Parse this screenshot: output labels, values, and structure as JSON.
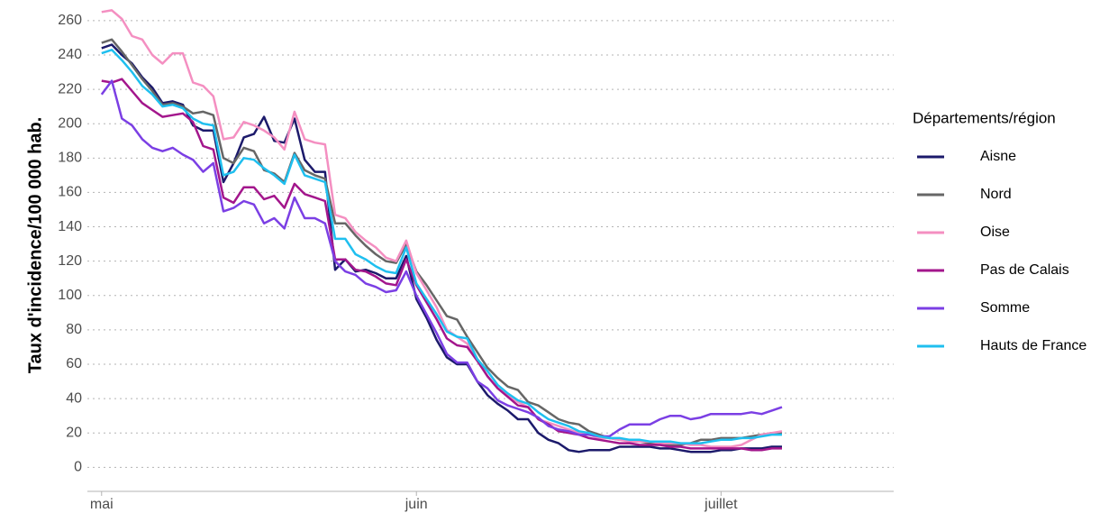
{
  "chart_data": {
    "type": "line",
    "y_label": "Taux d'incidence/100 000 hab.",
    "legend_title": "Départements/région",
    "legend": "right",
    "grid": true,
    "x": [
      0,
      1,
      2,
      3,
      4,
      5,
      6,
      7,
      8,
      9,
      10,
      11,
      12,
      13,
      14,
      15,
      16,
      17,
      18,
      19,
      20,
      21,
      22,
      23,
      24,
      25,
      26,
      27,
      28,
      29,
      30,
      31,
      32,
      33,
      34,
      35,
      36,
      37,
      38,
      39,
      40,
      41,
      42,
      43,
      44,
      45,
      46,
      47,
      48,
      49,
      50,
      51,
      52,
      53,
      54,
      55,
      56,
      57,
      58,
      59,
      60,
      61,
      62,
      63,
      64,
      65,
      66,
      67
    ],
    "xlim": [
      -1.4,
      78
    ],
    "xticks": [
      {
        "value": 0,
        "label": "mai"
      },
      {
        "value": 31,
        "label": "juin"
      },
      {
        "value": 61,
        "label": "juillet"
      }
    ],
    "ylim": [
      -14,
      272
    ],
    "yticks": [
      0,
      20,
      40,
      60,
      80,
      100,
      120,
      140,
      160,
      180,
      200,
      220,
      240,
      260
    ],
    "series": [
      {
        "name": "Aisne",
        "color": "#1c1a6b",
        "values": [
          244,
          246,
          240,
          235,
          227,
          221,
          212,
          213,
          211,
          199,
          196,
          196,
          166,
          177,
          192,
          194,
          204,
          190,
          189,
          203,
          179,
          172,
          172,
          115,
          121,
          114,
          115,
          113,
          110,
          110,
          123,
          98,
          87,
          74,
          64,
          60,
          60,
          50,
          42,
          37,
          33,
          28,
          28,
          20,
          16,
          14,
          10,
          9,
          10,
          10,
          10,
          12,
          12,
          12,
          12,
          11,
          11,
          10,
          9,
          9,
          9,
          10,
          10,
          11,
          11,
          11,
          12,
          12
        ]
      },
      {
        "name": "Nord",
        "color": "#666666",
        "values": [
          247,
          249,
          242,
          234,
          226,
          219,
          211,
          212,
          210,
          206,
          207,
          205,
          180,
          177,
          186,
          184,
          173,
          171,
          166,
          183,
          173,
          170,
          168,
          142,
          142,
          135,
          129,
          124,
          120,
          119,
          130,
          114,
          106,
          97,
          88,
          86,
          76,
          67,
          58,
          52,
          47,
          45,
          38,
          36,
          32,
          28,
          26,
          25,
          21,
          19,
          17,
          16,
          16,
          15,
          14,
          14,
          13,
          13,
          14,
          16,
          16,
          17,
          17,
          17,
          18,
          19,
          20,
          20
        ]
      },
      {
        "name": "Oise",
        "color": "#f48fc1",
        "values": [
          265,
          266,
          261,
          251,
          249,
          240,
          235,
          241,
          241,
          224,
          222,
          216,
          191,
          192,
          201,
          199,
          196,
          192,
          185,
          207,
          191,
          189,
          188,
          147,
          145,
          137,
          132,
          128,
          122,
          120,
          132,
          113,
          103,
          93,
          80,
          76,
          72,
          63,
          53,
          46,
          42,
          38,
          35,
          28,
          26,
          24,
          22,
          20,
          19,
          17,
          17,
          16,
          15,
          15,
          15,
          14,
          14,
          14,
          13,
          13,
          12,
          12,
          12,
          13,
          16,
          19,
          20,
          21
        ]
      },
      {
        "name": "Pas de Calais",
        "color": "#a3168c",
        "values": [
          225,
          224,
          226,
          219,
          212,
          208,
          204,
          205,
          206,
          201,
          187,
          185,
          157,
          154,
          163,
          163,
          156,
          158,
          151,
          165,
          159,
          157,
          155,
          121,
          121,
          115,
          114,
          111,
          107,
          106,
          121,
          106,
          96,
          86,
          75,
          71,
          70,
          62,
          53,
          46,
          41,
          36,
          35,
          28,
          25,
          21,
          20,
          19,
          17,
          16,
          15,
          14,
          14,
          13,
          13,
          13,
          12,
          12,
          11,
          11,
          11,
          11,
          11,
          11,
          10,
          10,
          11,
          11
        ]
      },
      {
        "name": "Somme",
        "color": "#7b3fe4",
        "values": [
          217,
          225,
          203,
          199,
          191,
          186,
          184,
          186,
          182,
          179,
          172,
          177,
          149,
          151,
          155,
          153,
          142,
          145,
          139,
          157,
          145,
          145,
          142,
          120,
          114,
          112,
          107,
          105,
          102,
          103,
          114,
          100,
          89,
          78,
          66,
          61,
          61,
          50,
          46,
          39,
          36,
          34,
          32,
          29,
          24,
          22,
          21,
          19,
          19,
          18,
          18,
          22,
          25,
          25,
          25,
          28,
          30,
          30,
          28,
          29,
          31,
          31,
          31,
          31,
          32,
          31,
          33,
          35
        ]
      },
      {
        "name": "Hauts de France",
        "color": "#1fbfef",
        "values": [
          241,
          243,
          237,
          230,
          222,
          217,
          210,
          211,
          209,
          203,
          200,
          199,
          170,
          172,
          180,
          179,
          174,
          170,
          165,
          182,
          170,
          168,
          166,
          133,
          133,
          124,
          121,
          117,
          114,
          113,
          128,
          107,
          98,
          89,
          79,
          76,
          75,
          63,
          56,
          48,
          43,
          39,
          37,
          32,
          28,
          26,
          24,
          21,
          20,
          18,
          17,
          17,
          16,
          16,
          15,
          15,
          15,
          14,
          14,
          14,
          15,
          16,
          16,
          17,
          17,
          18,
          19,
          19
        ]
      }
    ]
  }
}
